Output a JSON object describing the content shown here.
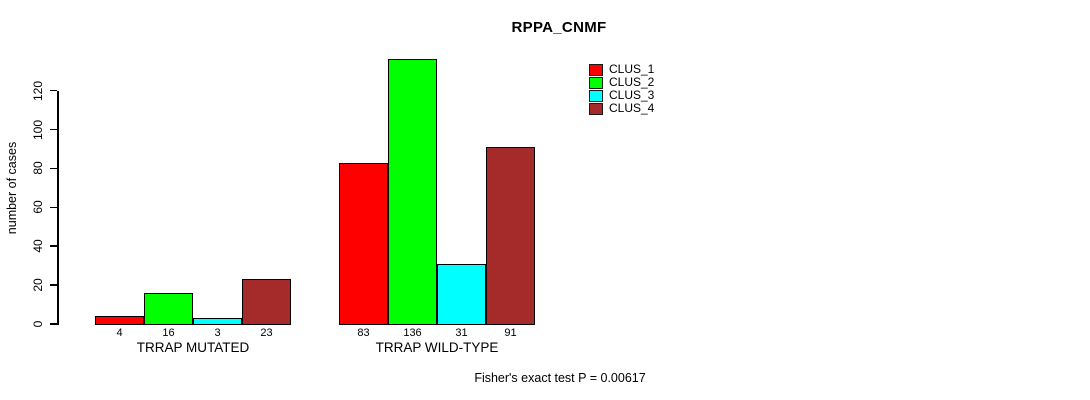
{
  "chart_data": {
    "type": "bar",
    "title": "RPPA_CNMF",
    "xlabel": "",
    "ylabel": "number of cases",
    "ylim": [
      0,
      140
    ],
    "yticks": [
      0,
      20,
      40,
      60,
      80,
      100,
      120
    ],
    "grid": false,
    "legend_position": "top-right",
    "categories": [
      "TRRAP MUTATED",
      "TRRAP WILD-TYPE"
    ],
    "series": [
      {
        "name": "CLUS_1",
        "color": "#ff0000",
        "values": [
          4,
          83
        ]
      },
      {
        "name": "CLUS_2",
        "color": "#00ff00",
        "values": [
          16,
          136
        ]
      },
      {
        "name": "CLUS_3",
        "color": "#00ffff",
        "values": [
          3,
          31
        ]
      },
      {
        "name": "CLUS_4",
        "color": "#a52a2a",
        "values": [
          23,
          91
        ]
      }
    ],
    "bar_value_labels_shown": true,
    "footnote": "Fisher's exact test P = 0.00617"
  }
}
